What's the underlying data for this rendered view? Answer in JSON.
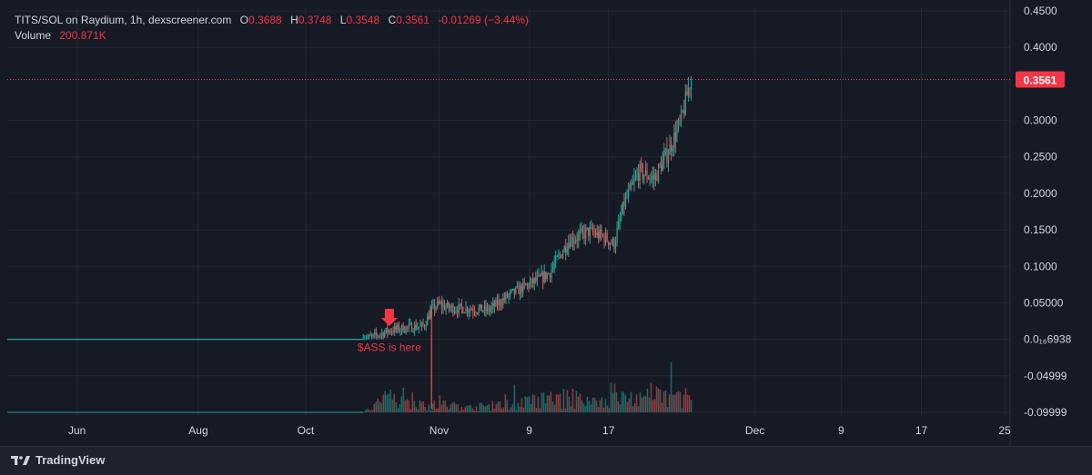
{
  "legend": {
    "pair": "TITS/SOL on Raydium, 1h, dexscreener.com",
    "open_label": "O",
    "open": "0.3688",
    "high_label": "H",
    "high": "0.3748",
    "low_label": "L",
    "low": "0.3548",
    "close_label": "C",
    "close": "0.3561",
    "change": "-0.01269 (−3.44%)",
    "volume_label": "Volume",
    "volume": "200.871K"
  },
  "colors": {
    "background": "#161a25",
    "up": "#26a69a",
    "down": "#ef5350",
    "grid": "#232733",
    "axis_text": "#d1d4dc",
    "price_tag": "#f23645",
    "annotation": "#f23645"
  },
  "chart_data": {
    "type": "candlestick",
    "title": "TITS/SOL on Raydium, 1h, dexscreener.com",
    "last_price": 0.3561,
    "last_price_label": "0.3561",
    "ylim": [
      -0.105,
      0.455
    ],
    "y_ticks": [
      {
        "value": 0.45,
        "label": "0.4500"
      },
      {
        "value": 0.4,
        "label": "0.4000"
      },
      {
        "value": 0.3,
        "label": "0.3000"
      },
      {
        "value": 0.25,
        "label": "0.2500"
      },
      {
        "value": 0.2,
        "label": "0.2000"
      },
      {
        "value": 0.15,
        "label": "0.1500"
      },
      {
        "value": 0.1,
        "label": "0.1000"
      },
      {
        "value": 0.05,
        "label": "0.05000"
      },
      {
        "value": 0.0,
        "label": "0.0₁₆6938"
      },
      {
        "value": -0.05,
        "label": "-0.04999"
      },
      {
        "value": -0.1,
        "label": "-0.09999"
      }
    ],
    "x_ticks": [
      {
        "pos": 0.075,
        "label": "Jun"
      },
      {
        "pos": 0.196,
        "label": "Aug"
      },
      {
        "pos": 0.303,
        "label": "Oct"
      },
      {
        "pos": 0.436,
        "label": "Nov"
      },
      {
        "pos": 0.526,
        "label": "9"
      },
      {
        "pos": 0.605,
        "label": "17"
      },
      {
        "pos": 0.751,
        "label": "Dec"
      },
      {
        "pos": 0.837,
        "label": "9"
      },
      {
        "pos": 0.917,
        "label": "17"
      },
      {
        "pos": 1.0,
        "label": "25"
      }
    ],
    "price_path": [
      [
        0.0,
        0.0
      ],
      [
        0.355,
        0.0
      ],
      [
        0.365,
        0.003
      ],
      [
        0.38,
        0.012
      ],
      [
        0.392,
        0.015
      ],
      [
        0.405,
        0.017
      ],
      [
        0.415,
        0.018
      ],
      [
        0.423,
        0.04
      ],
      [
        0.43,
        0.048
      ],
      [
        0.44,
        0.043
      ],
      [
        0.46,
        0.042
      ],
      [
        0.48,
        0.04
      ],
      [
        0.5,
        0.06
      ],
      [
        0.52,
        0.075
      ],
      [
        0.54,
        0.09
      ],
      [
        0.56,
        0.135
      ],
      [
        0.58,
        0.148
      ],
      [
        0.595,
        0.14
      ],
      [
        0.605,
        0.13
      ],
      [
        0.615,
        0.185
      ],
      [
        0.63,
        0.23
      ],
      [
        0.645,
        0.22
      ],
      [
        0.66,
        0.26
      ],
      [
        0.672,
        0.3
      ],
      [
        0.682,
        0.36
      ]
    ],
    "volume_profile": [
      [
        0.0,
        0.0
      ],
      [
        0.355,
        0.0
      ],
      [
        0.37,
        0.6
      ],
      [
        0.38,
        0.9
      ],
      [
        0.4,
        1.0
      ],
      [
        0.42,
        0.4
      ],
      [
        0.43,
        0.5
      ],
      [
        0.46,
        0.3
      ],
      [
        0.5,
        0.5
      ],
      [
        0.55,
        0.9
      ],
      [
        0.58,
        0.7
      ],
      [
        0.62,
        0.9
      ],
      [
        0.66,
        1.0
      ],
      [
        0.68,
        1.0
      ]
    ],
    "annotation": {
      "text": "$ASS is here",
      "x_pos": 0.381
    }
  }
}
